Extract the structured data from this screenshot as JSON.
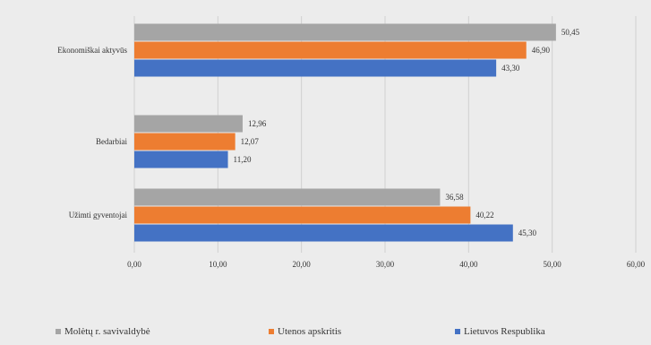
{
  "chart_data": {
    "type": "bar",
    "orientation": "horizontal",
    "categories": [
      "Ekonomiškai aktyvūs",
      "Bedarbiai",
      "Užimti gyventojai"
    ],
    "series": [
      {
        "name": "Molėtų r. savivaldybė",
        "color": "#a5a5a5",
        "values": [
          50.45,
          12.96,
          36.58
        ],
        "labels": [
          "50,45",
          "12,96",
          "36,58"
        ]
      },
      {
        "name": "Utenos apskritis",
        "color": "#ed7d31",
        "values": [
          46.9,
          12.07,
          40.22
        ],
        "labels": [
          "46,90",
          "12,07",
          "40,22"
        ]
      },
      {
        "name": "Lietuvos Respublika",
        "color": "#4472c4",
        "values": [
          43.3,
          11.2,
          45.3
        ],
        "labels": [
          "43,30",
          "11,20",
          "45,30"
        ]
      }
    ],
    "xlim": [
      0,
      60
    ],
    "ticks": [
      0,
      10,
      20,
      30,
      40,
      50,
      60
    ],
    "tick_labels": [
      "0,00",
      "10,00",
      "20,00",
      "30,00",
      "40,00",
      "50,00",
      "60,00"
    ],
    "grid": true,
    "legend_position": "bottom"
  }
}
